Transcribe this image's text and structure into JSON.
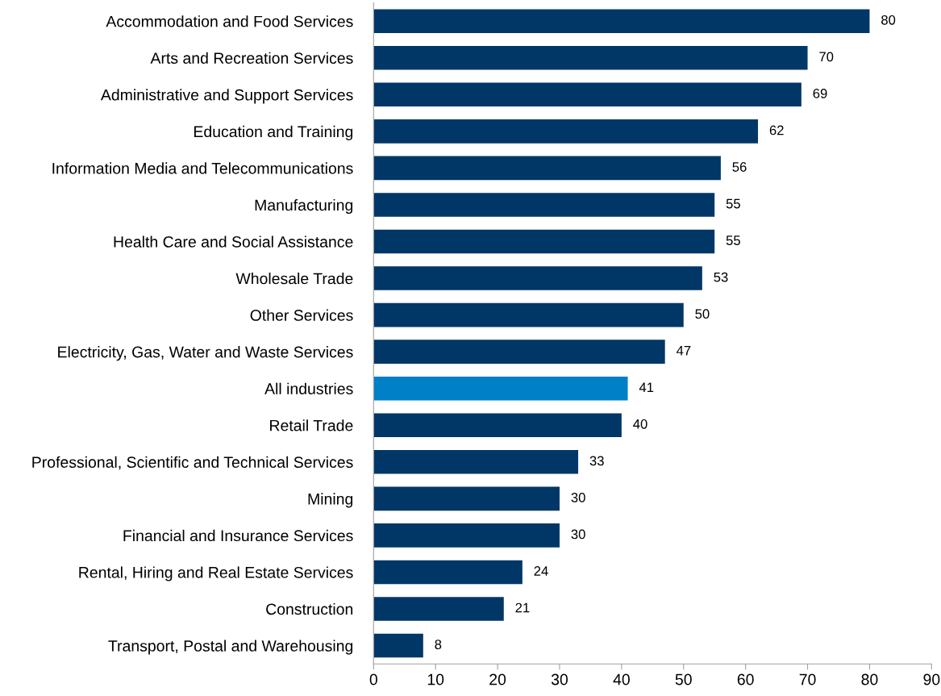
{
  "chart_data": {
    "type": "bar",
    "orientation": "horizontal",
    "categories": [
      "Accommodation and Food Services",
      "Arts and Recreation Services",
      "Administrative and Support Services",
      "Education and Training",
      "Information Media and Telecommunications",
      "Manufacturing",
      "Health Care and Social Assistance",
      "Wholesale Trade",
      "Other Services",
      "Electricity, Gas, Water and Waste Services",
      "All industries",
      "Retail Trade",
      "Professional, Scientific and Technical Services",
      "Mining",
      "Financial and Insurance Services",
      "Rental, Hiring and Real Estate Services",
      "Construction",
      "Transport, Postal and Warehousing"
    ],
    "values": [
      80,
      70,
      69,
      62,
      56,
      55,
      55,
      53,
      50,
      47,
      41,
      40,
      33,
      30,
      30,
      24,
      21,
      8
    ],
    "colors": [
      "#003767",
      "#003767",
      "#003767",
      "#003767",
      "#003767",
      "#003767",
      "#003767",
      "#003767",
      "#003767",
      "#003767",
      "#0080c6",
      "#003767",
      "#003767",
      "#003767",
      "#003767",
      "#003767",
      "#003767",
      "#003767"
    ],
    "xlim": [
      0,
      90
    ],
    "xticks": [
      0,
      10,
      20,
      30,
      40,
      50,
      60,
      70,
      80,
      90
    ],
    "data_labels": true,
    "grid": false,
    "legend": false
  }
}
